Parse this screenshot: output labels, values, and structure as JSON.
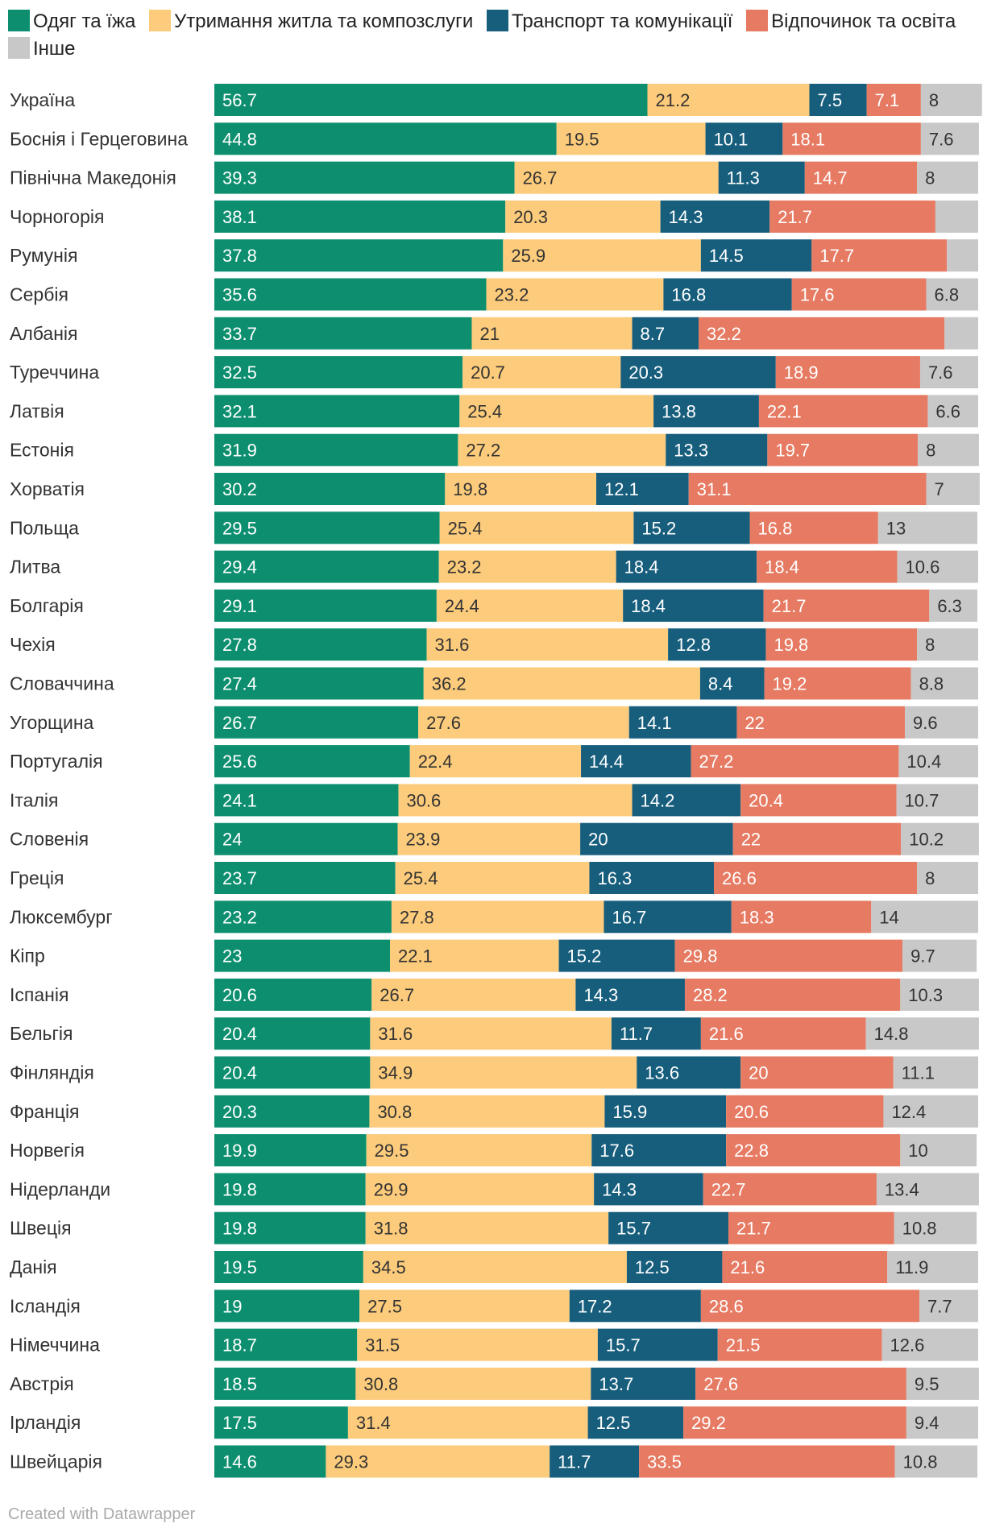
{
  "chart_data": {
    "type": "bar",
    "orientation": "horizontal",
    "stacked": true,
    "title": "",
    "xlabel": "",
    "ylabel": "",
    "xlim": [
      0,
      100
    ],
    "legend_position": "top",
    "categories": [
      "Україна",
      "Боснія і Герцеговина",
      "Північна Македонія",
      "Чорногорія",
      "Румунія",
      "Сербія",
      "Албанія",
      "Туреччина",
      "Латвія",
      "Естонія",
      "Хорватія",
      "Польща",
      "Литва",
      "Болгарія",
      "Чехія",
      "Словаччина",
      "Угорщина",
      "Португалія",
      "Італія",
      "Словенія",
      "Греція",
      "Люксембург",
      "Кіпр",
      "Іспанія",
      "Бельгія",
      "Фінляндія",
      "Франція",
      "Норвегія",
      "Нідерланди",
      "Швеція",
      "Данія",
      "Ісландія",
      "Німеччина",
      "Австрія",
      "Ірландія",
      "Швейцарія"
    ],
    "series": [
      {
        "name": "Одяг та їжа",
        "color": "#0d8f6f",
        "label_color": "#ffffff",
        "values": [
          56.7,
          44.8,
          39.3,
          38.1,
          37.8,
          35.6,
          33.7,
          32.5,
          32.1,
          31.9,
          30.2,
          29.5,
          29.4,
          29.1,
          27.8,
          27.4,
          26.7,
          25.6,
          24.1,
          24,
          23.7,
          23.2,
          23,
          20.6,
          20.4,
          20.4,
          20.3,
          19.9,
          19.8,
          19.8,
          19.5,
          19,
          18.7,
          18.5,
          17.5,
          14.6
        ],
        "labels": [
          "56.7",
          "44.8",
          "39.3",
          "38.1",
          "37.8",
          "35.6",
          "33.7",
          "32.5",
          "32.1",
          "31.9",
          "30.2",
          "29.5",
          "29.4",
          "29.1",
          "27.8",
          "27.4",
          "26.7",
          "25.6",
          "24.1",
          "24",
          "23.7",
          "23.2",
          "23",
          "20.6",
          "20.4",
          "20.4",
          "20.3",
          "19.9",
          "19.8",
          "19.8",
          "19.5",
          "19",
          "18.7",
          "18.5",
          "17.5",
          "14.6"
        ]
      },
      {
        "name": "Утримання житла та композслуги",
        "color": "#fccb7b",
        "label_color": "#333333",
        "values": [
          21.2,
          19.5,
          26.7,
          20.3,
          25.9,
          23.2,
          21,
          20.7,
          25.4,
          27.2,
          19.8,
          25.4,
          23.2,
          24.4,
          31.6,
          36.2,
          27.6,
          22.4,
          30.6,
          23.9,
          25.4,
          27.8,
          22.1,
          26.7,
          31.6,
          34.9,
          30.8,
          29.5,
          29.9,
          31.8,
          34.5,
          27.5,
          31.5,
          30.8,
          31.4,
          29.3
        ],
        "labels": [
          "21.2",
          "19.5",
          "26.7",
          "20.3",
          "25.9",
          "23.2",
          "21",
          "20.7",
          "25.4",
          "27.2",
          "19.8",
          "25.4",
          "23.2",
          "24.4",
          "31.6",
          "36.2",
          "27.6",
          "22.4",
          "30.6",
          "23.9",
          "25.4",
          "27.8",
          "22.1",
          "26.7",
          "31.6",
          "34.9",
          "30.8",
          "29.5",
          "29.9",
          "31.8",
          "34.5",
          "27.5",
          "31.5",
          "30.8",
          "31.4",
          "29.3"
        ]
      },
      {
        "name": "Транспорт та комунікації",
        "color": "#175e7d",
        "label_color": "#ffffff",
        "values": [
          7.5,
          10.1,
          11.3,
          14.3,
          14.5,
          16.8,
          8.7,
          20.3,
          13.8,
          13.3,
          12.1,
          15.2,
          18.4,
          18.4,
          12.8,
          8.4,
          14.1,
          14.4,
          14.2,
          20,
          16.3,
          16.7,
          15.2,
          14.3,
          11.7,
          13.6,
          15.9,
          17.6,
          14.3,
          15.7,
          12.5,
          17.2,
          15.7,
          13.7,
          12.5,
          11.7
        ],
        "labels": [
          "7.5",
          "10.1",
          "11.3",
          "14.3",
          "14.5",
          "16.8",
          "8.7",
          "20.3",
          "13.8",
          "13.3",
          "12.1",
          "15.2",
          "18.4",
          "18.4",
          "12.8",
          "8.4",
          "14.1",
          "14.4",
          "14.2",
          "20",
          "16.3",
          "16.7",
          "15.2",
          "14.3",
          "11.7",
          "13.6",
          "15.9",
          "17.6",
          "14.3",
          "15.7",
          "12.5",
          "17.2",
          "15.7",
          "13.7",
          "12.5",
          "11.7"
        ]
      },
      {
        "name": "Відпочинок та освіта",
        "color": "#e67a62",
        "label_color": "#ffffff",
        "values": [
          7.1,
          18.1,
          14.7,
          21.7,
          17.7,
          17.6,
          32.2,
          18.9,
          22.1,
          19.7,
          31.1,
          16.8,
          18.4,
          21.7,
          19.8,
          19.2,
          22,
          27.2,
          20.4,
          22,
          26.6,
          18.3,
          29.8,
          28.2,
          21.6,
          20,
          20.6,
          22.8,
          22.7,
          21.7,
          21.6,
          28.6,
          21.5,
          27.6,
          29.2,
          33.5
        ],
        "labels": [
          "7.1",
          "18.1",
          "14.7",
          "21.7",
          "17.7",
          "17.6",
          "32.2",
          "18.9",
          "22.1",
          "19.7",
          "31.1",
          "16.8",
          "18.4",
          "21.7",
          "19.8",
          "19.2",
          "22",
          "27.2",
          "20.4",
          "22",
          "26.6",
          "18.3",
          "29.8",
          "28.2",
          "21.6",
          "20",
          "20.6",
          "22.8",
          "22.7",
          "21.7",
          "21.6",
          "28.6",
          "21.5",
          "27.6",
          "29.2",
          "33.5"
        ]
      },
      {
        "name": "Інше",
        "color": "#c8c8c8",
        "label_color": "#333333",
        "values": [
          8,
          7.6,
          8,
          5.6,
          4.1,
          6.8,
          4.4,
          7.6,
          6.6,
          8,
          7,
          13,
          10.6,
          6.3,
          8,
          8.8,
          9.6,
          10.4,
          10.7,
          10.2,
          8,
          14,
          9.7,
          10.3,
          14.8,
          11.1,
          12.4,
          10,
          13.4,
          10.8,
          11.9,
          7.7,
          12.6,
          9.5,
          9.4,
          10.8
        ],
        "labels": [
          "8",
          "7.6",
          "8",
          "",
          "",
          "6.8",
          "",
          "7.6",
          "6.6",
          "8",
          "7",
          "13",
          "10.6",
          "6.3",
          "8",
          "8.8",
          "9.6",
          "10.4",
          "10.7",
          "10.2",
          "8",
          "14",
          "9.7",
          "10.3",
          "14.8",
          "11.1",
          "12.4",
          "10",
          "13.4",
          "10.8",
          "11.9",
          "7.7",
          "12.6",
          "9.5",
          "9.4",
          "10.8"
        ]
      }
    ]
  },
  "footer": {
    "credit": "Created with Datawrapper"
  }
}
